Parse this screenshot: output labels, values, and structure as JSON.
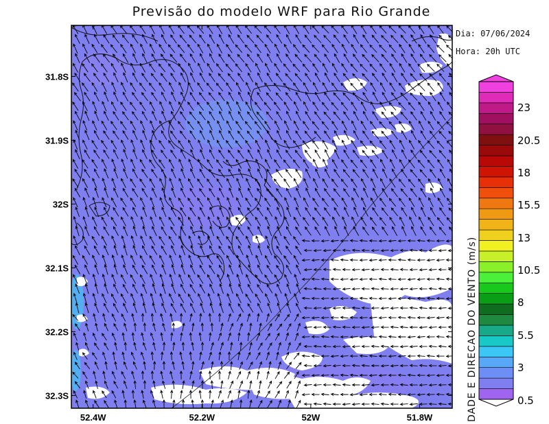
{
  "title": "Previsão do modelo WRF para Rio Grande",
  "info": {
    "date": "Dia: 07/06/2024",
    "hour": "Hora: 20h UTC"
  },
  "map": {
    "lon_range": [
      -52.44,
      -51.74
    ],
    "lat_range": [
      -32.32,
      -31.72
    ],
    "lat_ticks": [
      "31.8S",
      "31.9S",
      "32S",
      "32.1S",
      "32.2S",
      "32.3S"
    ],
    "lat_tick_values": [
      -31.8,
      -31.9,
      -32.0,
      -32.1,
      -32.2,
      -32.3
    ],
    "lon_ticks": [
      "52.4W",
      "52.2W",
      "52W",
      "51.8W"
    ],
    "lon_tick_values": [
      -52.4,
      -52.2,
      -52.0,
      -51.8
    ],
    "background_color": "#7f7ff0",
    "lowwind_color": "#ffffff",
    "dominant_wind_direction": "from south-southwest"
  },
  "colorbar": {
    "title": "DADE E DIRECAO DO VENTO (m/s)",
    "tick_labels": [
      "23",
      "20.5",
      "18",
      "15.5",
      "13",
      "10.5",
      "8",
      "5.5",
      "3",
      "0.5"
    ],
    "colors": [
      "#a065f0",
      "#7f7ff0",
      "#6d8ff5",
      "#58a8f7",
      "#3cc8f7",
      "#18c9c8",
      "#18aa88",
      "#1e8a40",
      "#106d20",
      "#0a9e16",
      "#18c81a",
      "#4af03a",
      "#8af02a",
      "#c8f028",
      "#f0f022",
      "#f0d01e",
      "#f0b418",
      "#f09a14",
      "#f07810",
      "#f0500c",
      "#e83008",
      "#d01404",
      "#b80808",
      "#9a0a0a",
      "#801010",
      "#901040",
      "#a01060",
      "#c01a88",
      "#e02ab8",
      "#f040e0"
    ]
  }
}
